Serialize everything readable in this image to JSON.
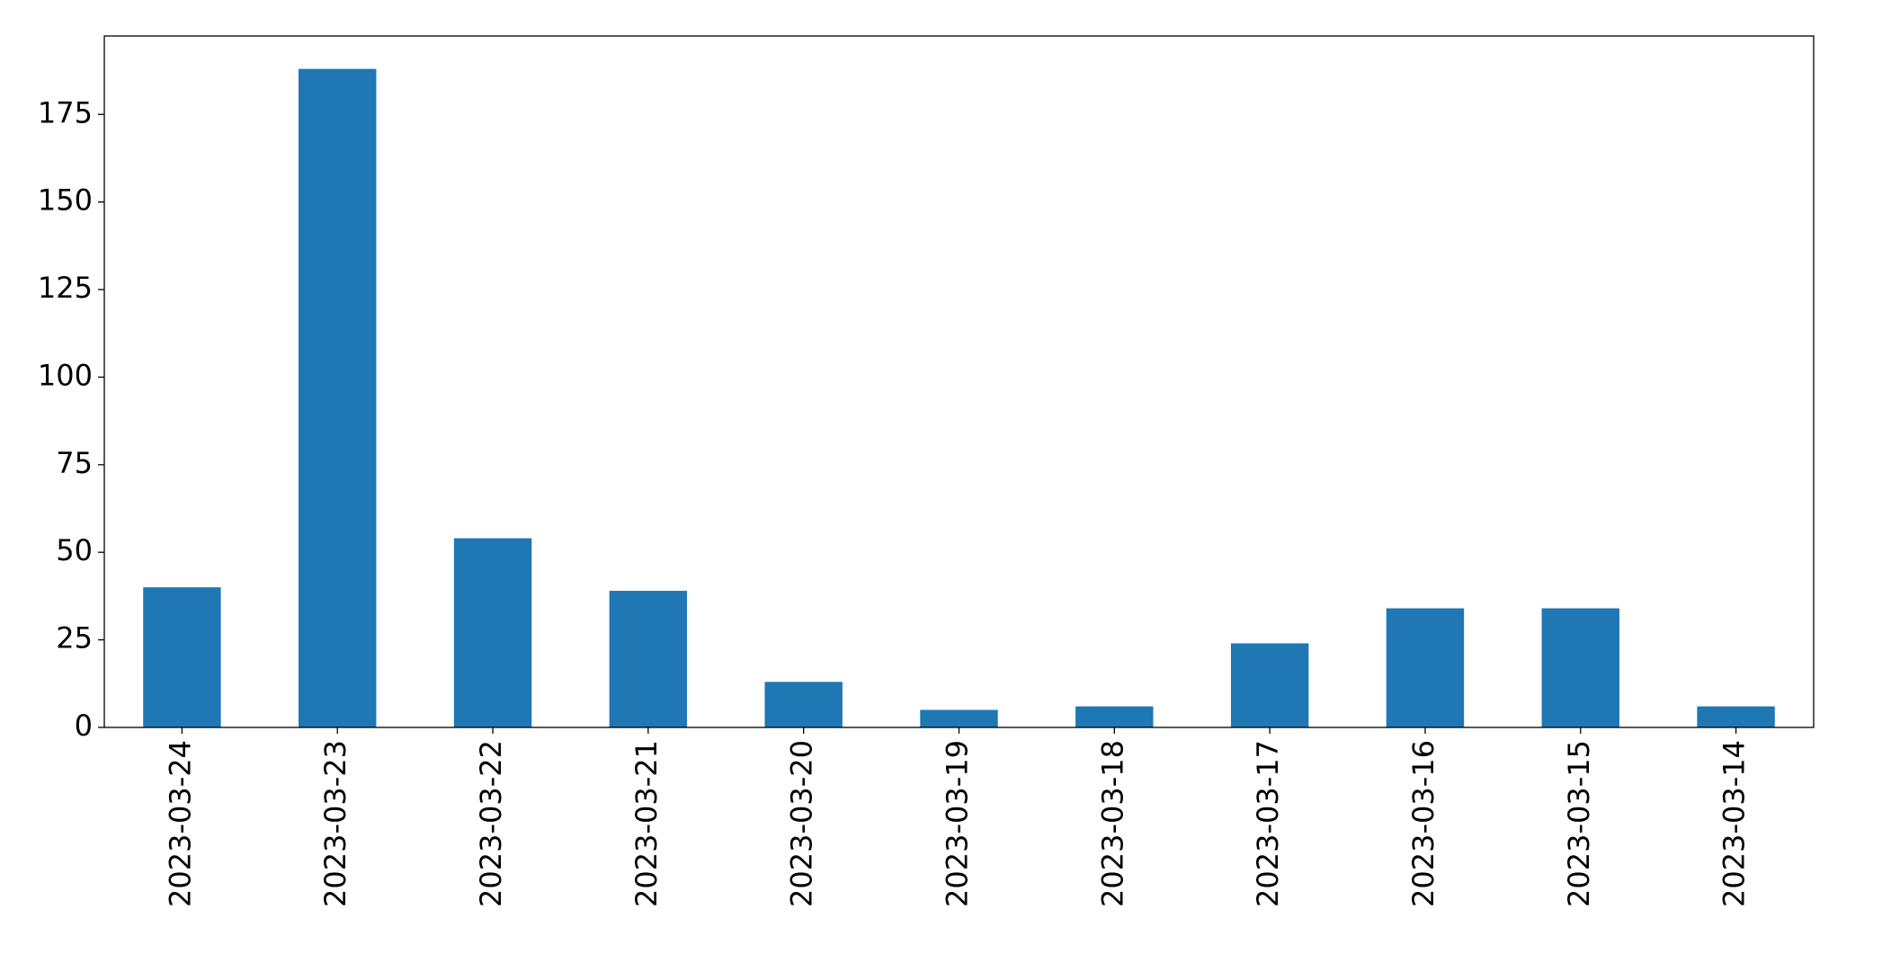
{
  "chart_data": {
    "type": "bar",
    "categories": [
      "2023-03-24",
      "2023-03-23",
      "2023-03-22",
      "2023-03-21",
      "2023-03-20",
      "2023-03-19",
      "2023-03-18",
      "2023-03-17",
      "2023-03-16",
      "2023-03-15",
      "2023-03-14"
    ],
    "values": [
      40,
      188,
      54,
      39,
      13,
      5,
      6,
      24,
      34,
      34,
      6
    ],
    "color": "#1f77b4",
    "ylim": [
      0,
      197.4
    ],
    "yticks": [
      0,
      25,
      50,
      75,
      100,
      125,
      150,
      175
    ],
    "grid": false
  }
}
